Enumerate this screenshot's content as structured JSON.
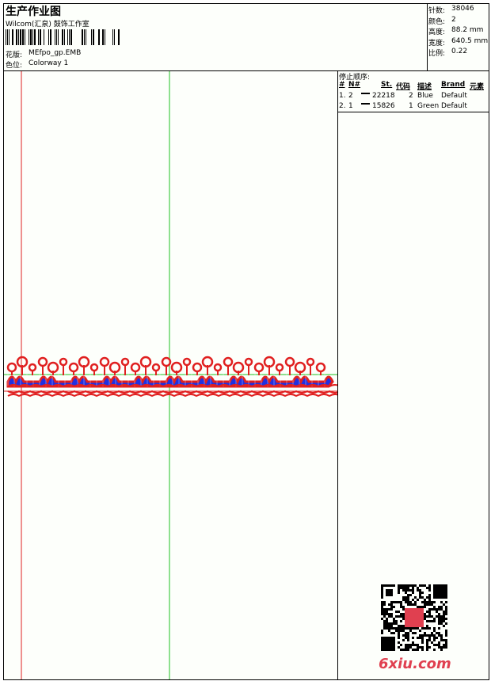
{
  "header": {
    "title": "生产作业图",
    "company": "Wilcom(汇泉) 鼓饰工作室",
    "design_label": "花版:",
    "design": "MEfpo_gp.EMB",
    "colorway_label": "色位:",
    "colorway": "Colorway 1"
  },
  "stats": [
    {
      "label": "针数:",
      "value": "38046"
    },
    {
      "label": "颜色:",
      "value": "2"
    },
    {
      "label": "高度:",
      "value": "88.2 mm"
    },
    {
      "label": "宽度:",
      "value": "640.5 mm"
    },
    {
      "label": "比例:",
      "value": "0.22"
    }
  ],
  "stop_sequence": {
    "title": "停止顺序:",
    "columns": [
      "#",
      "N#",
      "St.",
      "代码",
      "描述",
      "Brand",
      "元素"
    ],
    "rows": [
      {
        "index": "1.",
        "needle": "2",
        "color": "#1010e0",
        "stitches": "22218",
        "code": "2",
        "description": "Blue",
        "brand": "Default"
      },
      {
        "index": "2.",
        "needle": "1",
        "color": "#e01010",
        "stitches": "15826",
        "code": "1",
        "description": "Green",
        "brand": "Default"
      }
    ]
  },
  "watermark": "6xiu.com"
}
